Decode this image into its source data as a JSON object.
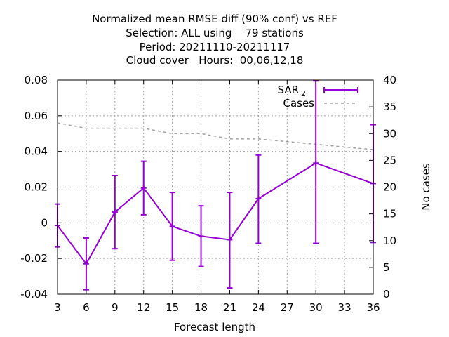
{
  "chart_data": {
    "type": "line",
    "title_lines": [
      "Normalized mean RMSE diff (90% conf) vs REF",
      "Selection: ALL using    79 stations",
      "Period: 20211110-20211117",
      "Cloud cover   Hours:  00,06,12,18"
    ],
    "xlabel": "Forecast length",
    "ylabel_right": "No cases",
    "xlim": [
      3,
      36
    ],
    "ylim": [
      -0.04,
      0.08
    ],
    "y2lim": [
      0,
      40
    ],
    "xticks": [
      3,
      6,
      9,
      12,
      15,
      18,
      21,
      24,
      27,
      30,
      33,
      36
    ],
    "yticks": [
      -0.04,
      -0.02,
      0,
      0.02,
      0.04,
      0.06,
      0.08
    ],
    "ytick_labels": [
      "-0.04",
      "-0.02",
      "0",
      "0.02",
      "0.04",
      "0.06",
      "0.08"
    ],
    "y2ticks": [
      0,
      5,
      10,
      15,
      20,
      25,
      30,
      35,
      40
    ],
    "grid": true,
    "legend_position": "top-right",
    "series": [
      {
        "name": "SAR",
        "name_sub": "2",
        "color": "#9400d3",
        "style": "line-errorbars",
        "axis": "left",
        "x": [
          3,
          6,
          9,
          12,
          15,
          18,
          21,
          24,
          30,
          36
        ],
        "y": [
          -0.0015,
          -0.023,
          0.006,
          0.0195,
          -0.002,
          -0.0075,
          -0.0095,
          0.0135,
          0.0335,
          0.022
        ],
        "yerr_low": [
          -0.0135,
          -0.0375,
          -0.0145,
          0.0045,
          -0.021,
          -0.0245,
          -0.0365,
          -0.0115,
          -0.0115,
          -0.011
        ],
        "yerr_high": [
          0.0105,
          -0.0085,
          0.0265,
          0.0345,
          0.017,
          0.0095,
          0.017,
          0.038,
          0.0795,
          0.055
        ]
      },
      {
        "name": "Cases",
        "color": "#a0a0a0",
        "style": "dashed",
        "axis": "right",
        "x": [
          3,
          6,
          9,
          12,
          15,
          18,
          21,
          24,
          30,
          36
        ],
        "y": [
          32,
          31,
          31,
          31,
          30,
          30,
          29,
          29,
          28,
          27
        ]
      }
    ]
  }
}
